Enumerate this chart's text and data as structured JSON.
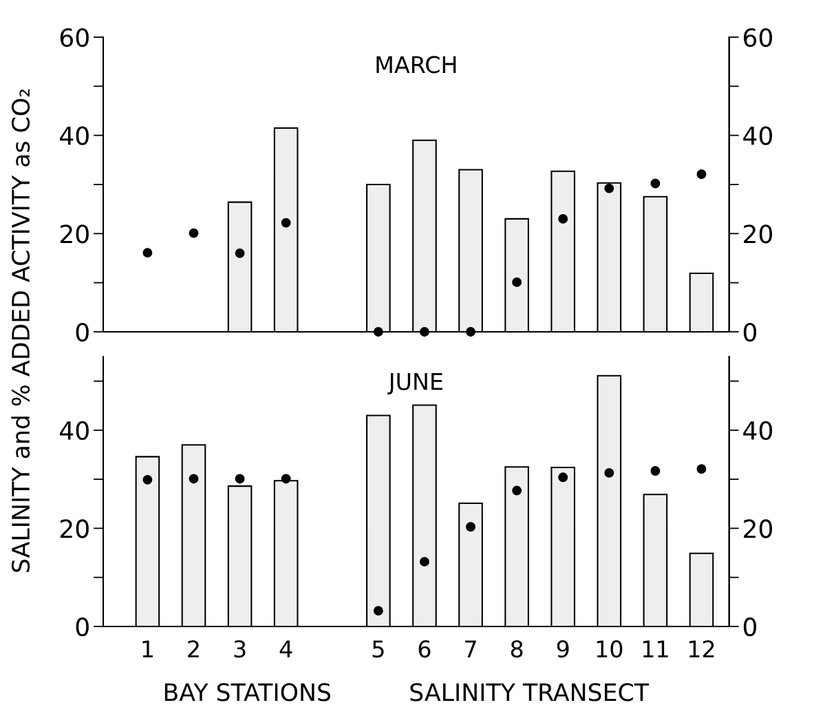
{
  "chart_data": [
    {
      "type": "bar",
      "title": "MARCH",
      "ylabel": "SALINITY and % ADDED ACTIVITY as CO₂",
      "categories": [
        "1",
        "2",
        "3",
        "4",
        null,
        "5",
        "6",
        "7",
        "8",
        "9",
        "10",
        "11",
        "12"
      ],
      "series": [
        {
          "color": "#eeeeee",
          "values": [
            null,
            null,
            26.4,
            41.5,
            null,
            30.0,
            39.0,
            33.0,
            23.0,
            32.7,
            30.3,
            27.5,
            11.9
          ]
        },
        {
          "type": "scatter",
          "color": "#000000",
          "values": [
            16.1,
            20.1,
            16.0,
            22.2,
            null,
            0,
            0,
            0,
            10.1,
            23.0,
            29.2,
            30.2,
            32.1
          ]
        }
      ],
      "ylim": [
        0,
        60
      ],
      "yticks": [
        0,
        {
          "value": 10,
          "label": null
        },
        20,
        {
          "value": 30,
          "label": null
        },
        40,
        {
          "value": 50,
          "label": null
        },
        60
      ],
      "y2lim": [
        0,
        60
      ],
      "y2ticks": [
        0,
        {
          "value": 10,
          "label": null
        },
        20,
        {
          "value": 30,
          "label": null
        },
        40,
        {
          "value": 50,
          "label": null
        },
        60
      ],
      "tick_labels": "y",
      "grid": false,
      "legend": false,
      "marker": "circle"
    },
    {
      "type": "bar",
      "title": "JUNE",
      "categories": [
        "1",
        "2",
        "3",
        "4",
        null,
        "5",
        "6",
        "7",
        "8",
        "9",
        "10",
        "11",
        "12"
      ],
      "series": [
        {
          "color": "#eeeeee",
          "values": [
            34.6,
            37.0,
            28.6,
            29.7,
            null,
            43.0,
            45.1,
            25.1,
            32.5,
            32.4,
            51.1,
            26.9,
            14.9
          ]
        },
        {
          "type": "scatter",
          "color": "#000000",
          "values": [
            29.9,
            30.1,
            30.1,
            30.1,
            null,
            3.2,
            13.2,
            20.3,
            27.7,
            30.4,
            31.3,
            31.7,
            32.1
          ]
        }
      ],
      "ylim": [
        0,
        55
      ],
      "yticks": [
        0,
        {
          "value": 10,
          "label": null
        },
        20,
        {
          "value": 30,
          "label": null
        },
        40,
        {
          "value": 50,
          "label": null
        }
      ],
      "y2lim": [
        0,
        55
      ],
      "y2ticks": [
        0,
        {
          "value": 10,
          "label": null
        },
        20,
        {
          "value": 30,
          "label": null
        },
        40,
        {
          "value": 50,
          "label": null
        }
      ],
      "annotations": [
        "BAY STATIONS",
        "SALINITY TRANSECT"
      ],
      "grid": false,
      "legend": false,
      "marker": "circle"
    }
  ]
}
